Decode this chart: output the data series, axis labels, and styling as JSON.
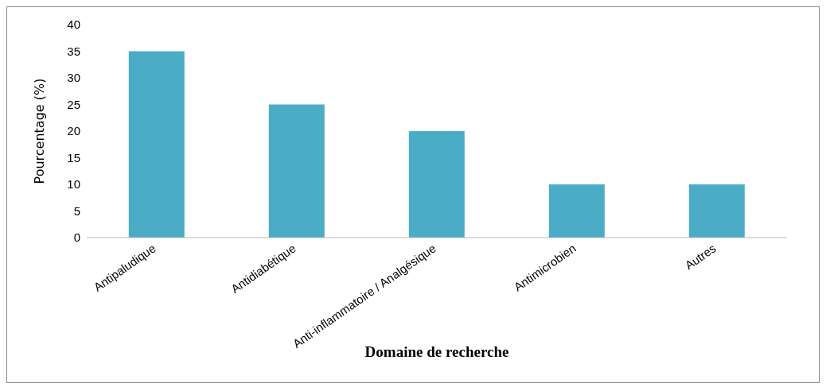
{
  "chart_data": {
    "type": "bar",
    "xlabel": "Domaine de recherche",
    "ylabel": "Pourcentage (%)",
    "categories": [
      "Antipaludique",
      "Antidiabétique",
      "Anti-inflammatoire / Analgésique",
      "Antimicrobien",
      "Autres"
    ],
    "values": [
      35,
      25,
      20,
      10,
      10
    ],
    "color": "#4bacc6",
    "ylim": [
      0,
      40
    ],
    "yticks": [
      0,
      5,
      10,
      15,
      20,
      25,
      30,
      35,
      40
    ],
    "grid": false
  }
}
